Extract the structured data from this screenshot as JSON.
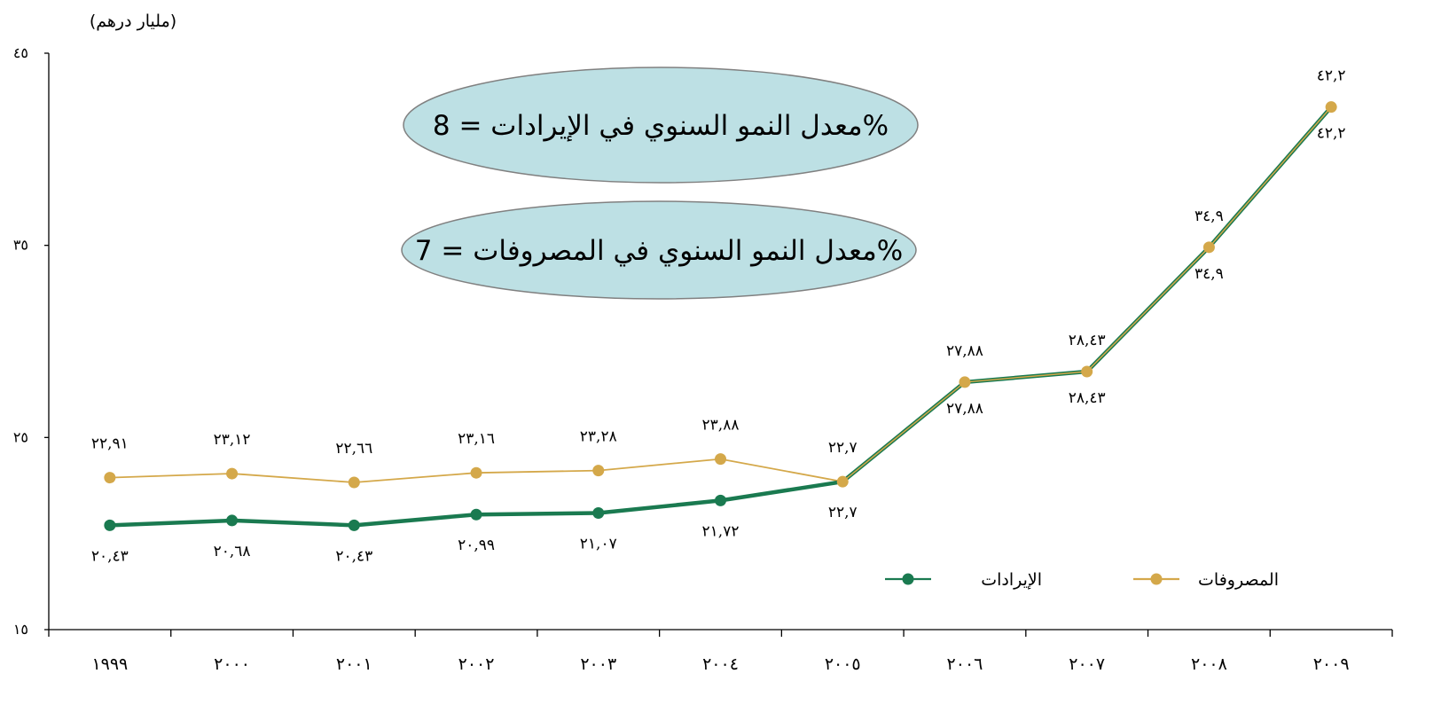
{
  "chart_data": {
    "type": "line",
    "ylabel": "(مليار درهم)",
    "ylim": [
      15,
      45
    ],
    "yticks": [
      "١٥",
      "٢٥",
      "٣٥",
      "٤٥"
    ],
    "ytick_values": [
      15,
      25,
      35,
      45
    ],
    "categories": [
      "١٩٩٩",
      "٢٠٠٠",
      "٢٠٠١",
      "٢٠٠٢",
      "٢٠٠٣",
      "٢٠٠٤",
      "٢٠٠٥",
      "٢٠٠٦",
      "٢٠٠٧",
      "٢٠٠٨",
      "٢٠٠٩"
    ],
    "series": [
      {
        "name": "الإيرادات",
        "color": "#1a7a50",
        "values": [
          20.43,
          20.68,
          20.43,
          20.99,
          21.07,
          21.72,
          22.7,
          27.88,
          28.43,
          34.9,
          42.2
        ],
        "labels": [
          "٢٠,٤٣",
          "٢٠,٦٨",
          "٢٠,٤٣",
          "٢٠,٩٩",
          "٢١,٠٧",
          "٢١,٧٢",
          "٢٢,٧",
          "٢٧,٨٨",
          "٢٨,٤٣",
          "٣٤,٩",
          "٤٢,٢"
        ]
      },
      {
        "name": "المصروفات",
        "color": "#d4a84a",
        "values": [
          22.91,
          23.12,
          22.66,
          23.16,
          23.28,
          23.88,
          22.7,
          27.88,
          28.43,
          34.9,
          42.2
        ],
        "labels": [
          "٢٢,٩١",
          "٢٣,١٢",
          "٢٢,٦٦",
          "٢٣,١٦",
          "٢٣,٢٨",
          "٢٣,٨٨",
          "٢٢,٧",
          "٢٧,٨٨",
          "٢٨,٤٣",
          "٣٤,٩",
          "٤٢,٢"
        ]
      }
    ],
    "annotations": [
      "معدل النمو السنوي في الإيرادات = 8%",
      "معدل النمو السنوي في المصروفات = 7%"
    ],
    "annotation_fill": "#bde0e4",
    "legend_position": "bottom-right",
    "grid": false
  }
}
